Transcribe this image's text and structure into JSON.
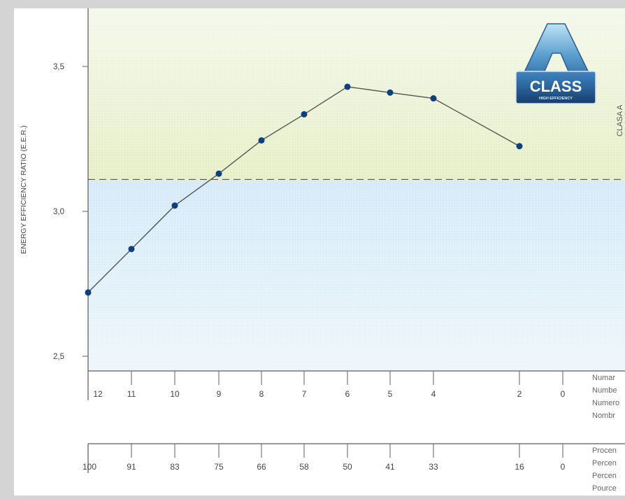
{
  "chart_data": {
    "type": "line",
    "ylabel": "ENERGY EFFICIENCY RATIO (E.E.R.)",
    "ylim": [
      2.45,
      3.7
    ],
    "yticks": [
      2.5,
      3.0,
      3.5
    ],
    "ytick_labels": [
      "2,5",
      "3,0",
      "3,5"
    ],
    "threshold": 3.11,
    "x_units": [
      "12",
      "11",
      "10",
      "9",
      "8",
      "7",
      "6",
      "5",
      "4",
      "2",
      "0"
    ],
    "x_percent": [
      "100",
      "91",
      "83",
      "75",
      "66",
      "58",
      "50",
      "41",
      "33",
      "16",
      "0"
    ],
    "series": [
      {
        "points": [
          {
            "x": "12",
            "y": 2.72
          },
          {
            "x": "11",
            "y": 2.87
          },
          {
            "x": "10",
            "y": 3.02
          },
          {
            "x": "9",
            "y": 3.13
          },
          {
            "x": "8",
            "y": 3.245
          },
          {
            "x": "7",
            "y": 3.335
          },
          {
            "x": "6",
            "y": 3.43
          },
          {
            "x": "5",
            "y": 3.41
          },
          {
            "x": "4",
            "y": 3.39
          },
          {
            "x": "2",
            "y": 3.225
          }
        ]
      }
    ]
  },
  "side_label": "CLASA  A",
  "badge": {
    "text": "CLASS",
    "subtext": "HIGH EFFICIENCY",
    "letter": "A"
  },
  "units_legend": [
    "Numar",
    "Numbe",
    "Numero",
    "Nombr"
  ],
  "percent_legend": [
    "Procen",
    "Percen",
    "Percen",
    "Pource"
  ],
  "colors": {
    "line": "#555555",
    "marker": "#0e3f7e",
    "class_a_zone": "#e8f0cc",
    "below_zone": "#dbeef8",
    "axis": "#777777"
  }
}
